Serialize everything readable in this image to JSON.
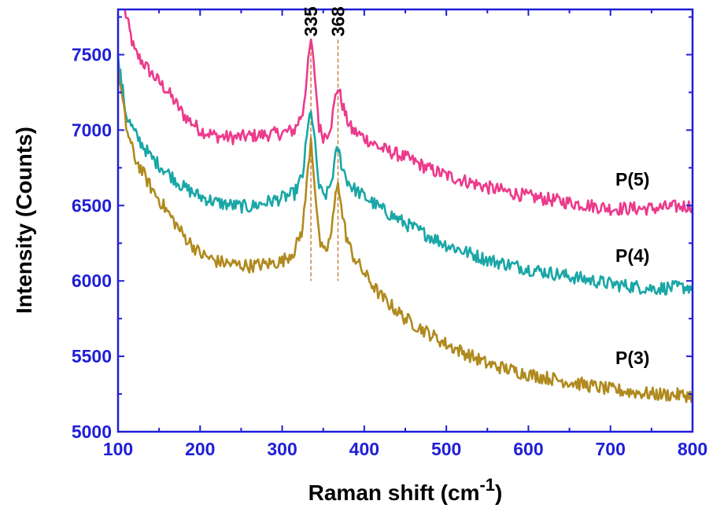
{
  "chart_data": {
    "type": "line",
    "xlabel": "Raman shift (cm",
    "xlabel_sup": "-1",
    "xlabel_close": ")",
    "ylabel": "Intensity (Counts)",
    "xlim": [
      100,
      800
    ],
    "ylim": [
      5000,
      7800
    ],
    "x_ticks": [
      100,
      200,
      300,
      400,
      500,
      600,
      700,
      800
    ],
    "y_ticks": [
      5000,
      5500,
      6000,
      6500,
      7000,
      7500
    ],
    "grid": false,
    "axis_color": "#1f1fd6",
    "peak_markers": [
      {
        "x": 335,
        "label": "335",
        "color": "#c8803a"
      },
      {
        "x": 368,
        "label": "368",
        "color": "#c8803a"
      }
    ],
    "series": [
      {
        "name": "P(5)",
        "color": "#ec3a8c",
        "x": [
          108,
          120,
          140,
          160,
          180,
          200,
          220,
          240,
          260,
          280,
          300,
          315,
          325,
          330,
          335,
          340,
          345,
          350,
          355,
          360,
          365,
          368,
          372,
          378,
          385,
          400,
          420,
          450,
          480,
          500,
          550,
          600,
          650,
          700,
          750,
          800
        ],
        "y": [
          7800,
          7520,
          7380,
          7260,
          7100,
          7000,
          6960,
          6950,
          6960,
          6970,
          6980,
          7000,
          7120,
          7350,
          7600,
          7350,
          7020,
          6960,
          6980,
          7050,
          7220,
          7290,
          7200,
          7080,
          7000,
          6950,
          6880,
          6820,
          6740,
          6700,
          6620,
          6560,
          6520,
          6480,
          6480,
          6500
        ]
      },
      {
        "name": "P(4)",
        "color": "#1aa6a6",
        "x": [
          100,
          110,
          120,
          140,
          160,
          180,
          200,
          220,
          240,
          260,
          280,
          300,
          315,
          325,
          330,
          335,
          340,
          345,
          350,
          355,
          360,
          365,
          368,
          372,
          378,
          385,
          400,
          420,
          450,
          500,
          550,
          600,
          650,
          700,
          750,
          800
        ],
        "y": [
          7470,
          7100,
          6980,
          6820,
          6720,
          6620,
          6560,
          6520,
          6500,
          6490,
          6520,
          6550,
          6580,
          6700,
          6950,
          7150,
          6900,
          6620,
          6560,
          6580,
          6660,
          6820,
          6880,
          6780,
          6680,
          6620,
          6560,
          6480,
          6380,
          6240,
          6140,
          6080,
          6030,
          5980,
          5950,
          5960
        ]
      },
      {
        "name": "P(3)",
        "color": "#b08a1e",
        "x": [
          100,
          110,
          120,
          140,
          160,
          180,
          200,
          220,
          240,
          260,
          280,
          300,
          315,
          325,
          330,
          335,
          340,
          345,
          350,
          355,
          360,
          365,
          368,
          372,
          378,
          385,
          400,
          420,
          450,
          500,
          550,
          600,
          650,
          700,
          750,
          800
        ],
        "y": [
          7400,
          7020,
          6820,
          6620,
          6460,
          6300,
          6180,
          6130,
          6110,
          6100,
          6110,
          6130,
          6200,
          6350,
          6650,
          6950,
          6620,
          6280,
          6180,
          6220,
          6320,
          6560,
          6680,
          6480,
          6300,
          6180,
          6050,
          5900,
          5750,
          5580,
          5450,
          5380,
          5330,
          5280,
          5250,
          5240
        ]
      }
    ],
    "legend_labels": [
      {
        "text": "P(5)",
        "series": 0
      },
      {
        "text": "P(4)",
        "series": 1
      },
      {
        "text": "P(3)",
        "series": 2
      }
    ]
  }
}
